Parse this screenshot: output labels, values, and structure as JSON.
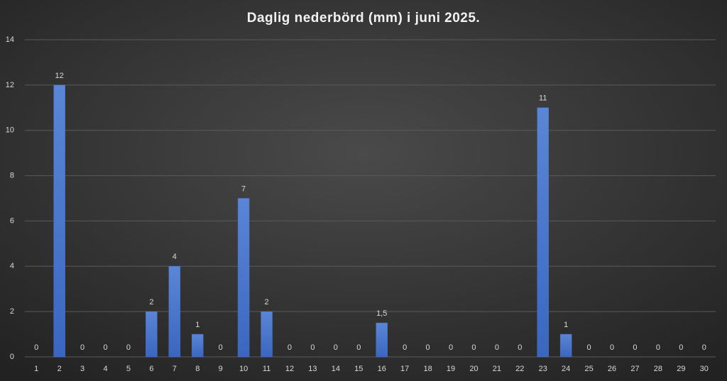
{
  "chart_data": {
    "type": "bar",
    "title": "Daglig nederbörd (mm) i juni 2025.",
    "categories": [
      "1",
      "2",
      "3",
      "4",
      "5",
      "6",
      "7",
      "8",
      "9",
      "10",
      "11",
      "12",
      "13",
      "14",
      "15",
      "16",
      "17",
      "18",
      "19",
      "20",
      "21",
      "22",
      "23",
      "24",
      "25",
      "26",
      "27",
      "28",
      "29",
      "30"
    ],
    "values": [
      0,
      12,
      0,
      0,
      0,
      2,
      4,
      1,
      0,
      7,
      2,
      0,
      0,
      0,
      0,
      1.5,
      0,
      0,
      0,
      0,
      0,
      0,
      11,
      1,
      0,
      0,
      0,
      0,
      0,
      0
    ],
    "value_labels": [
      "0",
      "12",
      "0",
      "0",
      "0",
      "2",
      "4",
      "1",
      "0",
      "7",
      "2",
      "0",
      "0",
      "0",
      "0",
      "1,5",
      "0",
      "0",
      "0",
      "0",
      "0",
      "0",
      "11",
      "1",
      "0",
      "0",
      "0",
      "0",
      "0",
      "0"
    ],
    "color": "#4472c4",
    "ylim": [
      0,
      14
    ],
    "yticks": [
      0,
      2,
      4,
      6,
      8,
      10,
      12,
      14
    ],
    "grid": true
  }
}
